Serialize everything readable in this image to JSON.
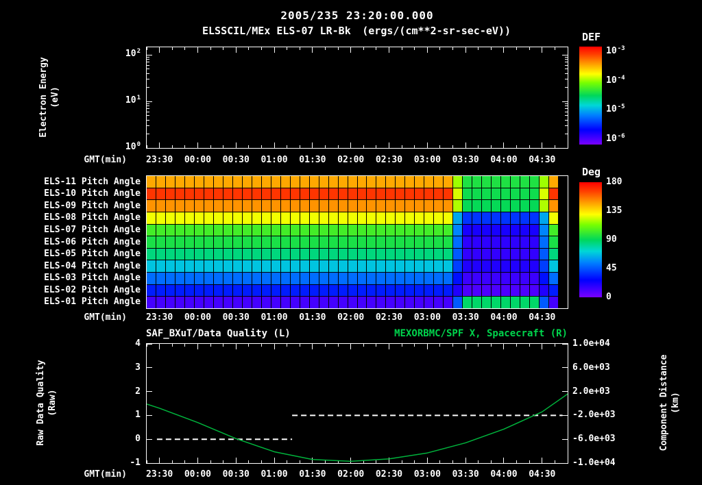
{
  "title": {
    "line1": "2005/235 23:20:00.000",
    "line2_left": "ELSSCIL/MEx ELS-07 LR-Bk",
    "line2_units": "(ergs/(cm**2-sr-sec-eV))"
  },
  "colors": {
    "background": "#000000",
    "text": "#ffffff",
    "green_text": "#00d44c",
    "curve_green": "#00b33c",
    "quality_white": "#ffffff"
  },
  "axis": {
    "x_label": "GMT(min)",
    "x_start_time": "23:20",
    "x_range_minutes": [
      0,
      330
    ],
    "x_tick_minutes": [
      10,
      40,
      70,
      100,
      130,
      160,
      190,
      220,
      250,
      280,
      310
    ],
    "x_tick_labels": [
      "23:30",
      "00:00",
      "00:30",
      "01:00",
      "01:30",
      "02:00",
      "02:30",
      "03:00",
      "03:30",
      "04:00",
      "04:30"
    ]
  },
  "energy_panel": {
    "ylabel_line1": "Electron Energy",
    "ylabel_line2": "(eV)",
    "y_tick_base": "10",
    "y_tick_exponents": [
      "2",
      "1",
      "0"
    ],
    "colorbar": {
      "title": "DEF",
      "tick_base": "10",
      "tick_exponents": [
        "-3",
        "-4",
        "-5",
        "-6"
      ]
    }
  },
  "pitch_panel": {
    "colorbar": {
      "title": "Deg",
      "tick_labels": [
        "180",
        "135",
        "90",
        "45",
        "0"
      ],
      "min": 0,
      "max": 180
    }
  },
  "bottom_panel": {
    "title_left": "SAF_BXuT/Data Quality (L)",
    "title_right": "MEXORBMC/SPF X, Spacecraft (R)",
    "ylabel_left_line1": "Raw Data Quality",
    "ylabel_left_line2": "(Raw)",
    "ylabel_right_line1": "Component Distance",
    "ylabel_right_line2": "(km)",
    "left_tick_labels": [
      "4",
      "3",
      "2",
      "1",
      "0",
      "-1"
    ],
    "right_tick_labels": [
      "1.0e+04",
      "6.0e+03",
      "2.0e+03",
      "-2.0e+03",
      "-6.0e+03",
      "-1.0e+04"
    ],
    "left_range": [
      -1,
      4
    ],
    "right_range": [
      -10000,
      10000
    ]
  },
  "chart_data": [
    {
      "id": "energy_spectrogram",
      "type": "heatmap",
      "title": "ELSSCIL/MEx ELS-07 LR-Bk (ergs/(cm**2-sr-sec-eV))",
      "xlabel": "GMT(min)",
      "ylabel": "Electron Energy (eV)",
      "y_scale": "log",
      "y_tick_values": [
        100,
        10,
        1
      ],
      "x_tick_labels": [
        "23:30",
        "00:00",
        "00:30",
        "01:00",
        "01:30",
        "02:00",
        "02:30",
        "03:00",
        "03:30",
        "04:00",
        "04:30"
      ],
      "colorbar": {
        "title": "DEF",
        "tick_values": [
          0.001,
          0.0001,
          1e-05,
          1e-06
        ],
        "units": "ergs/(cm**2-sr-sec-eV)"
      },
      "values": []
    },
    {
      "id": "pitch_angles",
      "type": "heatmap",
      "xlabel": "GMT(min)",
      "x_start": "23:20",
      "minutes_per_column": 7.5,
      "n_columns": 44,
      "unit": "degrees",
      "x_tick_labels": [
        "23:30",
        "00:00",
        "00:30",
        "01:00",
        "01:30",
        "02:00",
        "02:30",
        "03:00",
        "03:30",
        "04:00",
        "04:30"
      ],
      "colorbar": {
        "title": "Deg",
        "min": 0,
        "max": 180
      },
      "rows": [
        {
          "label": "ELS-11 Pitch Angle",
          "values_rle": [
            [
              32,
              146
            ],
            [
              1,
              118
            ],
            [
              8,
              96
            ],
            [
              1,
              118
            ],
            [
              1,
              146
            ],
            [
              1,
              null
            ]
          ]
        },
        {
          "label": "ELS-10 Pitch Angle",
          "values_rle": [
            [
              32,
              168
            ],
            [
              1,
              125
            ],
            [
              8,
              93
            ],
            [
              1,
              125
            ],
            [
              1,
              168
            ],
            [
              1,
              null
            ]
          ]
        },
        {
          "label": "ELS-09 Pitch Angle",
          "values_rle": [
            [
              32,
              150
            ],
            [
              1,
              120
            ],
            [
              8,
              91
            ],
            [
              1,
              120
            ],
            [
              1,
              150
            ],
            [
              1,
              null
            ]
          ]
        },
        {
          "label": "ELS-08 Pitch Angle",
          "values_rle": [
            [
              32,
              128
            ],
            [
              1,
              62
            ],
            [
              8,
              38
            ],
            [
              1,
              62
            ],
            [
              1,
              128
            ],
            [
              1,
              null
            ]
          ]
        },
        {
          "label": "ELS-07 Pitch Angle",
          "values_rle": [
            [
              32,
              103
            ],
            [
              1,
              55
            ],
            [
              8,
              22
            ],
            [
              1,
              55
            ],
            [
              1,
              103
            ],
            [
              1,
              null
            ]
          ]
        },
        {
          "label": "ELS-06 Pitch Angle",
          "values_rle": [
            [
              32,
              95
            ],
            [
              1,
              50
            ],
            [
              8,
              17
            ],
            [
              1,
              50
            ],
            [
              1,
              95
            ],
            [
              1,
              null
            ]
          ]
        },
        {
          "label": "ELS-05 Pitch Angle",
          "values_rle": [
            [
              32,
              85
            ],
            [
              1,
              46
            ],
            [
              8,
              16
            ],
            [
              1,
              46
            ],
            [
              1,
              85
            ],
            [
              1,
              null
            ]
          ]
        },
        {
          "label": "ELS-04 Pitch Angle",
          "values_rle": [
            [
              32,
              68
            ],
            [
              1,
              40
            ],
            [
              8,
              20
            ],
            [
              1,
              40
            ],
            [
              1,
              68
            ],
            [
              1,
              null
            ]
          ]
        },
        {
          "label": "ELS-03 Pitch Angle",
          "values_rle": [
            [
              32,
              50
            ],
            [
              1,
              30
            ],
            [
              8,
              14
            ],
            [
              1,
              30
            ],
            [
              1,
              50
            ],
            [
              1,
              null
            ]
          ]
        },
        {
          "label": "ELS-02 Pitch Angle",
          "values_rle": [
            [
              32,
              33
            ],
            [
              1,
              20
            ],
            [
              8,
              10
            ],
            [
              1,
              20
            ],
            [
              1,
              33
            ],
            [
              1,
              null
            ]
          ]
        },
        {
          "label": "ELS-01 Pitch Angle",
          "values_rle": [
            [
              32,
              12
            ],
            [
              1,
              46
            ],
            [
              8,
              88
            ],
            [
              1,
              46
            ],
            [
              1,
              12
            ],
            [
              1,
              null
            ]
          ]
        }
      ]
    },
    {
      "id": "quality_and_distance",
      "type": "line",
      "xlabel": "GMT(min)",
      "x_unit": "minutes_after_23:20",
      "left_axis": {
        "label": "Raw Data Quality (Raw)",
        "range": [
          -1,
          4
        ]
      },
      "right_axis": {
        "label": "Component Distance (km)",
        "range": [
          -10000,
          10000
        ]
      },
      "series": [
        {
          "name": "SAF_BXuT/Data Quality (L)",
          "axis": "left",
          "line_style": "dashed",
          "color": "#ffffff",
          "segments": [
            [
              [
                8,
                0
              ],
              [
                114,
                0
              ]
            ],
            [
              [
                114,
                1
              ],
              [
                326,
                1
              ]
            ]
          ]
        },
        {
          "name": "MEXORBMC/SPF X, Spacecraft (R)",
          "axis": "right",
          "line_style": "solid",
          "color": "#00b33c",
          "points": [
            [
              0,
              -100
            ],
            [
              10,
              -800
            ],
            [
              40,
              -3200
            ],
            [
              70,
              -5900
            ],
            [
              100,
              -8100
            ],
            [
              130,
              -9400
            ],
            [
              160,
              -9700
            ],
            [
              190,
              -9300
            ],
            [
              220,
              -8300
            ],
            [
              250,
              -6600
            ],
            [
              280,
              -4300
            ],
            [
              310,
              -1400
            ],
            [
              330,
              1600
            ]
          ]
        }
      ]
    }
  ]
}
